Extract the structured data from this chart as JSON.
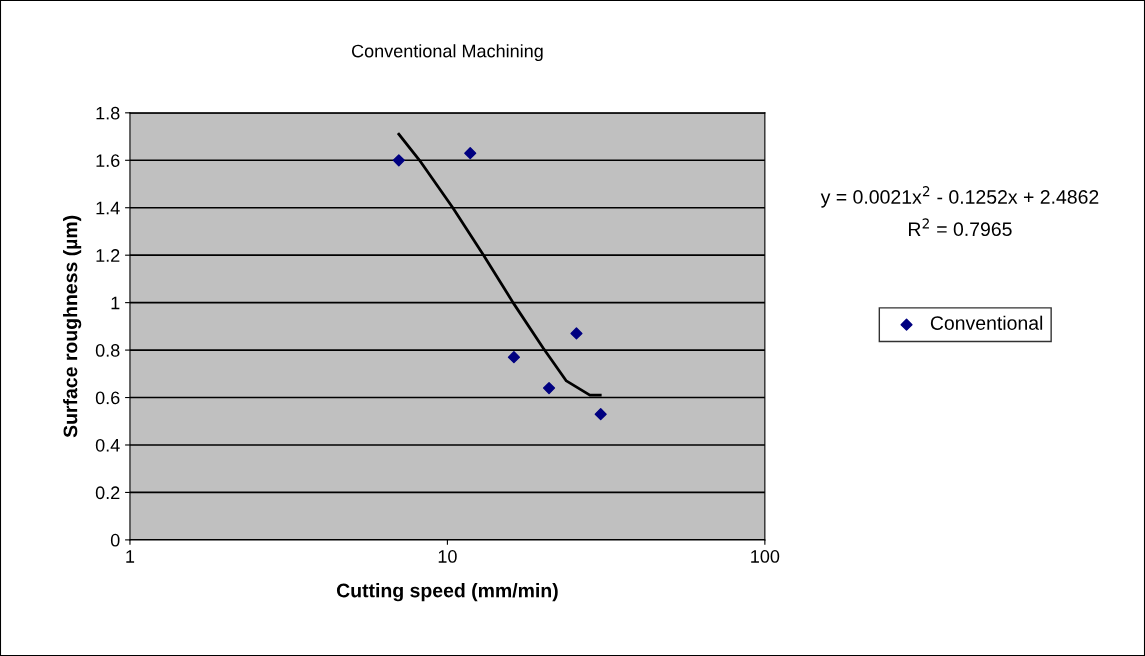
{
  "chart_data": {
    "type": "scatter",
    "title": "Conventional Machining",
    "xlabel": "Cutting speed (mm/min)",
    "ylabel": "Surface roughness (µm)",
    "log": "x",
    "xlim": [
      1,
      100
    ],
    "xticks": [
      1,
      10,
      100
    ],
    "ylim": [
      0,
      1.8
    ],
    "yticks": [
      0,
      0.2,
      0.4,
      0.6,
      0.8,
      1,
      1.2,
      1.4,
      1.6,
      1.8
    ],
    "grid": "y",
    "legend": "right",
    "marker": "diamond",
    "series": [
      {
        "name": "Conventional",
        "color": "#000080",
        "x": [
          7.03,
          11.8,
          16.2,
          20.9,
          25.5,
          30.4
        ],
        "values": [
          1.6,
          1.63,
          0.77,
          0.64,
          0.87,
          0.53
        ]
      },
      {
        "type": "line",
        "color": "#000000",
        "marker": "none",
        "line_style": "solid",
        "x": [
          7.03,
          8.17,
          10.4,
          13.0,
          16.1,
          20.0,
          23.7,
          28.1,
          30.3
        ],
        "values": [
          1.71,
          1.6,
          1.4,
          1.2,
          1.0,
          0.81,
          0.67,
          0.61,
          0.61
        ]
      }
    ],
    "annotations": [
      "y = 0.0021x$^{2}$ - 0.1252x + 2.4862",
      "R$^{2}$ = 0.7965"
    ]
  }
}
